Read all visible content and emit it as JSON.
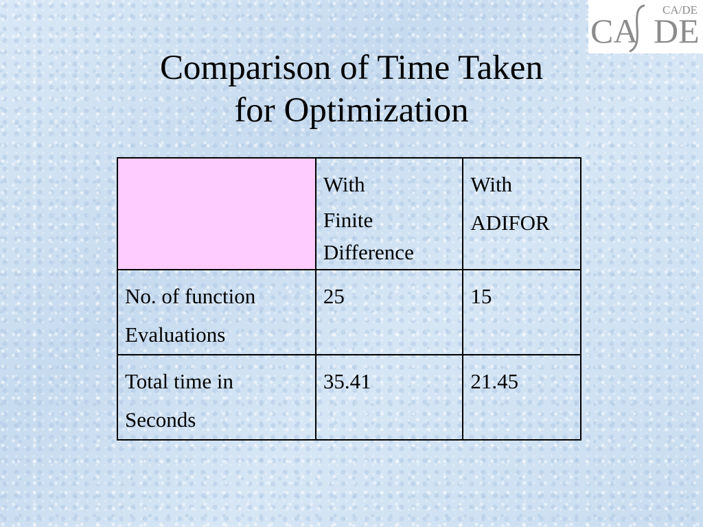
{
  "slide": {
    "title_line1": "Comparison of Time Taken",
    "title_line2": "for Optimization"
  },
  "logo": {
    "text_left": "CA",
    "text_right": "DE",
    "small_text": "CA/DE",
    "colors": {
      "text": "#8c8c8c",
      "slash": "#8c8c8c",
      "background": "#ffffff"
    }
  },
  "table": {
    "header_row": {
      "corner": "",
      "col1": [
        "With",
        "Finite",
        "Difference"
      ],
      "col2": [
        "With",
        "ADIFOR"
      ]
    },
    "rows": [
      {
        "label": [
          "No. of function",
          "Evaluations"
        ],
        "finite_difference": "25",
        "adifor": "15"
      },
      {
        "label": [
          "Total time in",
          "Seconds"
        ],
        "finite_difference": "35.41",
        "adifor": "21.45"
      }
    ]
  },
  "colors": {
    "background": "#cfe1f1",
    "header_corner": "#ffccff",
    "border": "#000000",
    "text": "#000000"
  }
}
